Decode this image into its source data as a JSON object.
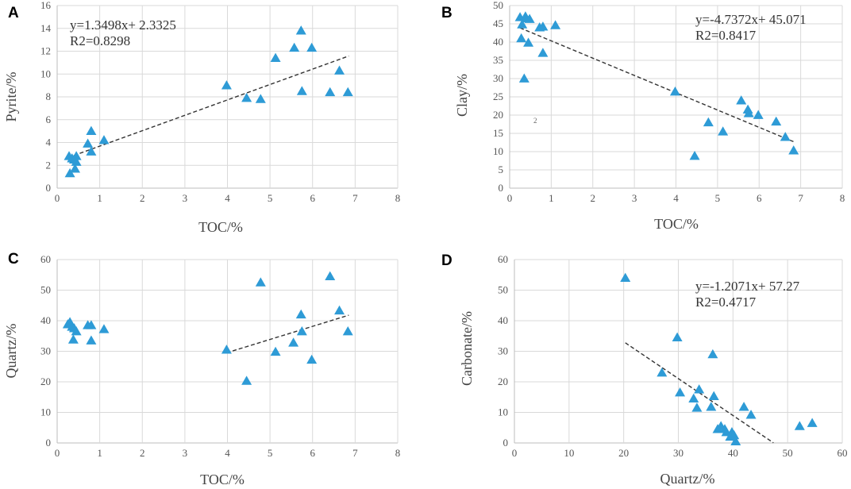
{
  "chart_data": [
    {
      "panel": "A",
      "type": "scatter",
      "xlabel": "TOC/%",
      "ylabel": "Pyrite/%",
      "xlim": [
        0,
        8
      ],
      "xticks": [
        0,
        1,
        2,
        3,
        4,
        5,
        6,
        7,
        8
      ],
      "ylim": [
        0,
        16
      ],
      "yticks": [
        0,
        2,
        4,
        6,
        8,
        10,
        12,
        14,
        16
      ],
      "x": [
        0.28,
        0.3,
        0.35,
        0.4,
        0.42,
        0.45,
        0.45,
        0.72,
        0.8,
        0.8,
        1.1,
        3.98,
        4.45,
        4.78,
        5.13,
        5.57,
        5.73,
        5.75,
        5.98,
        6.41,
        6.63,
        6.83
      ],
      "y": [
        2.8,
        1.3,
        2.6,
        2.5,
        1.7,
        2.3,
        2.8,
        3.9,
        5.0,
        3.2,
        4.2,
        9.0,
        7.9,
        7.8,
        11.4,
        12.3,
        13.8,
        8.5,
        12.3,
        8.4,
        10.3,
        8.4
      ],
      "trendline": {
        "slope": 1.3498,
        "intercept": 2.3325,
        "x_range": [
          0.25,
          6.85
        ]
      },
      "equation": "y=1.3498x+ 2.3325",
      "r2": "R2=0.8298"
    },
    {
      "panel": "B",
      "type": "scatter",
      "xlabel": "TOC/%",
      "ylabel": "Clay/%",
      "xlim": [
        0,
        8
      ],
      "xticks": [
        0,
        1,
        2,
        3,
        4,
        5,
        6,
        7,
        8
      ],
      "ylim": [
        0,
        50
      ],
      "yticks": [
        0,
        5,
        10,
        15,
        20,
        25,
        30,
        35,
        40,
        45,
        50
      ],
      "x": [
        0.25,
        0.28,
        0.3,
        0.35,
        0.38,
        0.4,
        0.45,
        0.48,
        0.72,
        0.8,
        0.8,
        1.1,
        3.98,
        4.45,
        4.78,
        5.13,
        5.57,
        5.73,
        5.75,
        5.98,
        6.41,
        6.63,
        6.83
      ],
      "y": [
        46.8,
        41.0,
        44.8,
        30.0,
        47.0,
        46.5,
        39.8,
        46.3,
        44.0,
        37.0,
        44.2,
        44.6,
        26.4,
        8.8,
        18.0,
        15.5,
        24.0,
        21.5,
        20.5,
        20.0,
        18.2,
        14.0,
        10.3
      ],
      "trendline": {
        "slope": -4.7372,
        "intercept": 45.071,
        "x_range": [
          0.25,
          6.85
        ]
      },
      "equation": "y=-4.7372x+ 45.071",
      "r2": "R2=0.8417",
      "stray_mark": "2"
    },
    {
      "panel": "C",
      "type": "scatter",
      "xlabel": "TOC/%",
      "ylabel": "Quartz/%",
      "xlim": [
        0,
        8
      ],
      "xticks": [
        0,
        1,
        2,
        3,
        4,
        5,
        6,
        7,
        8
      ],
      "ylim": [
        0,
        60
      ],
      "yticks": [
        0,
        10,
        20,
        30,
        40,
        50,
        60
      ],
      "x": [
        0.25,
        0.3,
        0.35,
        0.38,
        0.4,
        0.45,
        0.72,
        0.8,
        0.8,
        1.1,
        3.98,
        4.45,
        4.78,
        5.13,
        5.55,
        5.73,
        5.75,
        5.98,
        6.41,
        6.63,
        6.83
      ],
      "y": [
        38.8,
        39.5,
        38.0,
        33.8,
        37.5,
        36.5,
        38.5,
        38.5,
        33.5,
        37.2,
        30.5,
        20.3,
        52.5,
        29.8,
        32.8,
        42.0,
        36.5,
        27.2,
        54.5,
        43.3,
        36.5
      ],
      "trendline": {
        "x_range": [
          3.98,
          6.85
        ],
        "y_range": [
          29.5,
          41.8
        ]
      }
    },
    {
      "panel": "D",
      "type": "scatter",
      "xlabel": "Quartz/%",
      "ylabel": "Carbonate/%",
      "xlim": [
        0,
        60
      ],
      "xticks": [
        0,
        10,
        20,
        30,
        40,
        50,
        60
      ],
      "ylim": [
        0,
        60
      ],
      "yticks": [
        0,
        10,
        20,
        30,
        40,
        50,
        60
      ],
      "x": [
        20.3,
        27.0,
        29.8,
        30.3,
        32.8,
        33.4,
        33.8,
        36.0,
        36.3,
        36.5,
        37.2,
        37.8,
        38.5,
        38.8,
        39.5,
        39.8,
        40.2,
        40.5,
        42.0,
        43.3,
        52.2,
        54.5
      ],
      "y": [
        54.0,
        23.0,
        34.5,
        16.5,
        14.5,
        11.5,
        17.5,
        11.8,
        29.0,
        15.3,
        4.5,
        5.5,
        4.5,
        3.5,
        2.0,
        3.5,
        2.5,
        0.5,
        11.8,
        9.2,
        5.5,
        6.5
      ],
      "trendline": {
        "slope": -1.2071,
        "intercept": 57.27,
        "x_range": [
          20.3,
          47.4
        ]
      },
      "equation": "y=-1.2071x+ 57.27",
      "r2": "R2=0.4717"
    }
  ]
}
